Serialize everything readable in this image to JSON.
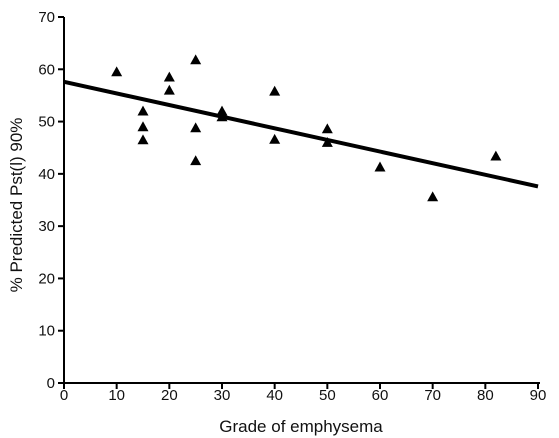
{
  "chart_data": {
    "type": "scatter",
    "title": "",
    "xlabel": "Grade of emphysema",
    "ylabel": "% Predicted Pst(l) 90%",
    "xlim": [
      0,
      90
    ],
    "ylim": [
      0,
      70
    ],
    "x_ticks": [
      0,
      10,
      20,
      30,
      40,
      50,
      60,
      70,
      80,
      90
    ],
    "y_ticks": [
      0,
      10,
      20,
      30,
      40,
      50,
      60,
      70
    ],
    "grid": false,
    "marker": "triangle",
    "series": [
      {
        "points": [
          {
            "x": 10,
            "y": 59.5
          },
          {
            "x": 15,
            "y": 52
          },
          {
            "x": 15,
            "y": 49
          },
          {
            "x": 15,
            "y": 46.5
          },
          {
            "x": 20,
            "y": 58.5
          },
          {
            "x": 20,
            "y": 56
          },
          {
            "x": 25,
            "y": 61.8
          },
          {
            "x": 25,
            "y": 48.8
          },
          {
            "x": 25,
            "y": 42.5
          },
          {
            "x": 30,
            "y": 52
          },
          {
            "x": 30,
            "y": 50.9
          },
          {
            "x": 40,
            "y": 55.8
          },
          {
            "x": 40,
            "y": 46.6
          },
          {
            "x": 50,
            "y": 48.6
          },
          {
            "x": 50,
            "y": 46
          },
          {
            "x": 60,
            "y": 41.3
          },
          {
            "x": 70,
            "y": 35.6
          },
          {
            "x": 82,
            "y": 43.4
          }
        ]
      }
    ],
    "regression_line": {
      "x": [
        0,
        90
      ],
      "y": [
        57.6,
        37.6
      ]
    }
  }
}
